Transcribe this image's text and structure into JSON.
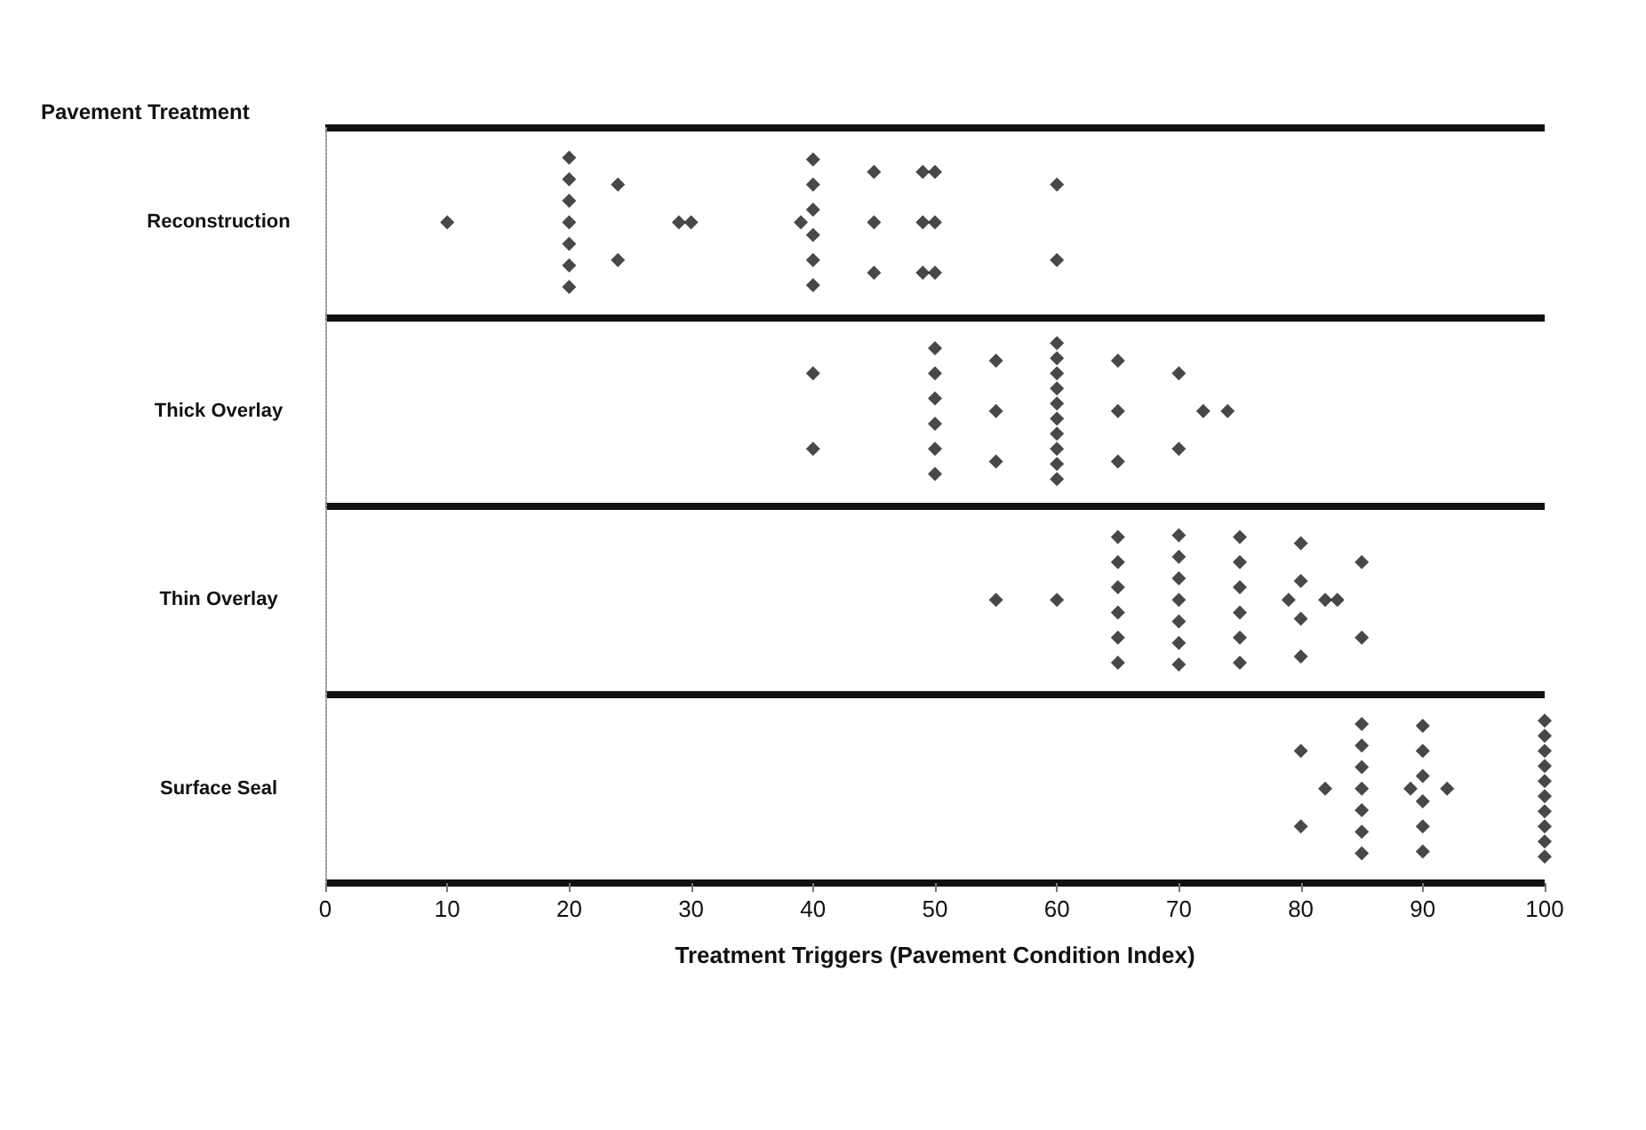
{
  "chart_data": {
    "type": "scatter",
    "orientation": "horizontal",
    "ylabel": "Pavement Treatment",
    "xlabel": "Treatment Triggers (Pavement Condition Index)",
    "categories": [
      "Reconstruction",
      "Thick Overlay",
      "Thin Overlay",
      "Surface Seal"
    ],
    "xlim": [
      0,
      100
    ],
    "xticks": [
      0,
      10,
      20,
      30,
      40,
      50,
      60,
      70,
      80,
      90,
      100
    ],
    "marker": "diamond",
    "series": [
      {
        "color": "#1a1a1a",
        "x": [
          "Reconstruction",
          "Reconstruction",
          "Reconstruction",
          "Reconstruction",
          "Reconstruction",
          "Reconstruction",
          "Reconstruction",
          "Reconstruction",
          "Reconstruction",
          "Reconstruction",
          "Reconstruction",
          "Reconstruction",
          "Reconstruction",
          "Reconstruction",
          "Reconstruction",
          "Reconstruction",
          "Reconstruction",
          "Reconstruction",
          "Reconstruction",
          "Reconstruction",
          "Reconstruction",
          "Reconstruction",
          "Reconstruction",
          "Reconstruction",
          "Reconstruction",
          "Reconstruction",
          "Reconstruction",
          "Reconstruction",
          "Reconstruction",
          "Reconstruction"
        ],
        "values": [
          10,
          20,
          20,
          20,
          20,
          20,
          20,
          20,
          24,
          24,
          29,
          30,
          39,
          40,
          40,
          40,
          40,
          40,
          40,
          45,
          45,
          45,
          49,
          49,
          49,
          50,
          50,
          50,
          60,
          60
        ]
      },
      {
        "color": "#1a1a1a",
        "x": [
          "Thick Overlay",
          "Thick Overlay",
          "Thick Overlay",
          "Thick Overlay",
          "Thick Overlay",
          "Thick Overlay",
          "Thick Overlay",
          "Thick Overlay",
          "Thick Overlay",
          "Thick Overlay",
          "Thick Overlay",
          "Thick Overlay",
          "Thick Overlay",
          "Thick Overlay",
          "Thick Overlay",
          "Thick Overlay",
          "Thick Overlay",
          "Thick Overlay",
          "Thick Overlay",
          "Thick Overlay",
          "Thick Overlay",
          "Thick Overlay",
          "Thick Overlay",
          "Thick Overlay",
          "Thick Overlay",
          "Thick Overlay",
          "Thick Overlay",
          "Thick Overlay"
        ],
        "values": [
          40,
          40,
          50,
          50,
          50,
          50,
          50,
          50,
          55,
          55,
          55,
          60,
          60,
          60,
          60,
          60,
          60,
          60,
          60,
          60,
          60,
          65,
          65,
          65,
          70,
          70,
          72,
          74
        ]
      },
      {
        "color": "#1a1a1a",
        "x": [
          "Thin Overlay",
          "Thin Overlay",
          "Thin Overlay",
          "Thin Overlay",
          "Thin Overlay",
          "Thin Overlay",
          "Thin Overlay",
          "Thin Overlay",
          "Thin Overlay",
          "Thin Overlay",
          "Thin Overlay",
          "Thin Overlay",
          "Thin Overlay",
          "Thin Overlay",
          "Thin Overlay",
          "Thin Overlay",
          "Thin Overlay",
          "Thin Overlay",
          "Thin Overlay",
          "Thin Overlay",
          "Thin Overlay",
          "Thin Overlay",
          "Thin Overlay",
          "Thin Overlay",
          "Thin Overlay",
          "Thin Overlay",
          "Thin Overlay",
          "Thin Overlay",
          "Thin Overlay",
          "Thin Overlay"
        ],
        "values": [
          55,
          60,
          65,
          65,
          65,
          65,
          65,
          65,
          70,
          70,
          70,
          70,
          70,
          70,
          70,
          75,
          75,
          75,
          75,
          75,
          75,
          79,
          80,
          80,
          80,
          80,
          82,
          83,
          85,
          85
        ]
      },
      {
        "color": "#1a1a1a",
        "x": [
          "Surface Seal",
          "Surface Seal",
          "Surface Seal",
          "Surface Seal",
          "Surface Seal",
          "Surface Seal",
          "Surface Seal",
          "Surface Seal",
          "Surface Seal",
          "Surface Seal",
          "Surface Seal",
          "Surface Seal",
          "Surface Seal",
          "Surface Seal",
          "Surface Seal",
          "Surface Seal",
          "Surface Seal",
          "Surface Seal",
          "Surface Seal",
          "Surface Seal",
          "Surface Seal",
          "Surface Seal",
          "Surface Seal",
          "Surface Seal",
          "Surface Seal",
          "Surface Seal",
          "Surface Seal",
          "Surface Seal"
        ],
        "values": [
          80,
          80,
          82,
          85,
          85,
          85,
          85,
          85,
          85,
          85,
          89,
          90,
          90,
          90,
          90,
          90,
          90,
          92,
          100,
          100,
          100,
          100,
          100,
          100,
          100,
          100,
          100,
          100
        ]
      }
    ]
  }
}
